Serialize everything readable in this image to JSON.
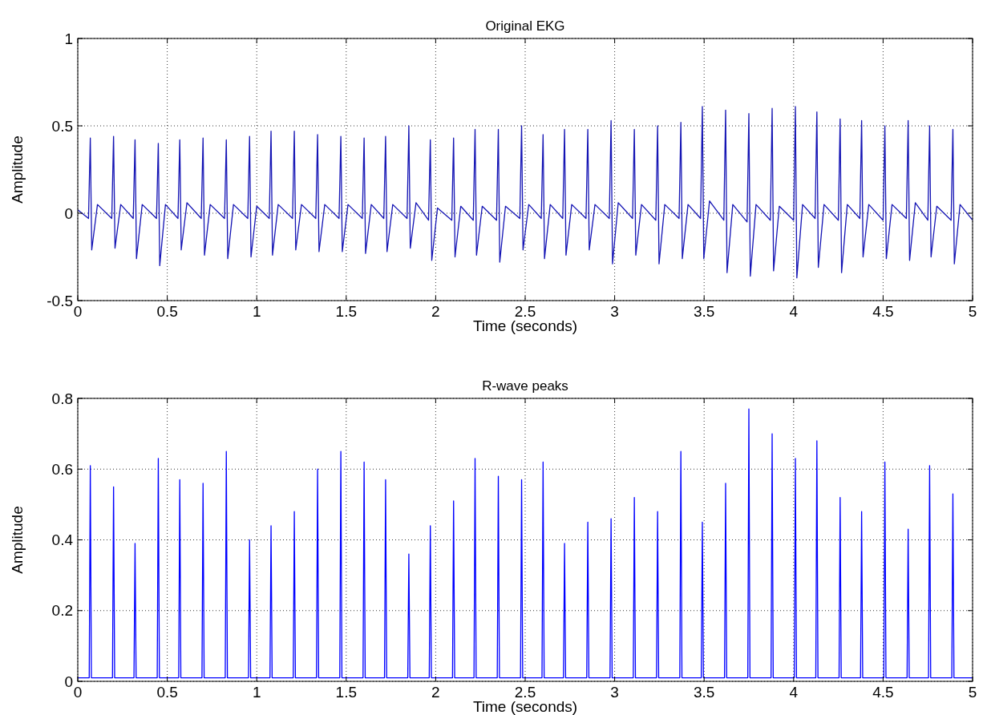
{
  "chart_data": [
    {
      "type": "line",
      "title": "Original EKG",
      "xlabel": "Time (seconds)",
      "ylabel": "Amplitude",
      "xlim": [
        0,
        5
      ],
      "xticks": [
        0,
        0.5,
        1,
        1.5,
        2,
        2.5,
        3,
        3.5,
        4,
        4.5,
        5
      ],
      "ylim": [
        -0.5,
        1
      ],
      "yticks": [
        -0.5,
        0,
        0.5,
        1
      ],
      "grid": true,
      "x": [
        0,
        0.06,
        0.07,
        0.078,
        0.11,
        0.19,
        0.2,
        0.208,
        0.24,
        0.31,
        0.32,
        0.328,
        0.36,
        0.44,
        0.45,
        0.458,
        0.49,
        0.56,
        0.57,
        0.578,
        0.61,
        0.69,
        0.7,
        0.708,
        0.74,
        0.82,
        0.83,
        0.838,
        0.87,
        0.95,
        0.96,
        0.968,
        1.0,
        1.07,
        1.08,
        1.088,
        1.12,
        1.2,
        1.21,
        1.218,
        1.25,
        1.33,
        1.34,
        1.348,
        1.38,
        1.46,
        1.47,
        1.478,
        1.51,
        1.59,
        1.6,
        1.608,
        1.64,
        1.71,
        1.72,
        1.728,
        1.76,
        1.84,
        1.85,
        1.858,
        1.89,
        1.96,
        1.97,
        1.978,
        2.01,
        2.09,
        2.1,
        2.108,
        2.14,
        2.21,
        2.22,
        2.228,
        2.26,
        2.34,
        2.35,
        2.358,
        2.39,
        2.47,
        2.48,
        2.488,
        2.52,
        2.59,
        2.6,
        2.608,
        2.64,
        2.71,
        2.72,
        2.728,
        2.76,
        2.84,
        2.85,
        2.858,
        2.89,
        2.97,
        2.98,
        2.988,
        3.02,
        3.1,
        3.11,
        3.118,
        3.15,
        3.23,
        3.24,
        3.248,
        3.28,
        3.36,
        3.37,
        3.378,
        3.41,
        3.48,
        3.49,
        3.498,
        3.53,
        3.61,
        3.62,
        3.628,
        3.66,
        3.74,
        3.75,
        3.758,
        3.79,
        3.87,
        3.88,
        3.888,
        3.92,
        4.0,
        4.01,
        4.018,
        4.05,
        4.12,
        4.13,
        4.138,
        4.17,
        4.25,
        4.26,
        4.268,
        4.3,
        4.37,
        4.38,
        4.388,
        4.42,
        4.5,
        4.51,
        4.518,
        4.55,
        4.63,
        4.64,
        4.648,
        4.68,
        4.75,
        4.76,
        4.768,
        4.8,
        4.88,
        4.89,
        4.898,
        4.93,
        5
      ],
      "series": [
        {
          "color": "#1414b4",
          "values": [
            0.02,
            -0.03,
            0.43,
            -0.21,
            0.05,
            -0.03,
            0.44,
            -0.2,
            0.05,
            -0.03,
            0.42,
            -0.26,
            0.05,
            -0.03,
            0.4,
            -0.3,
            0.05,
            -0.03,
            0.42,
            -0.21,
            0.06,
            -0.03,
            0.43,
            -0.24,
            0.05,
            -0.03,
            0.42,
            -0.26,
            0.05,
            -0.03,
            0.44,
            -0.25,
            0.04,
            -0.03,
            0.47,
            -0.24,
            0.05,
            -0.03,
            0.47,
            -0.21,
            0.05,
            -0.03,
            0.45,
            -0.22,
            0.05,
            -0.03,
            0.44,
            -0.22,
            0.05,
            -0.03,
            0.43,
            -0.23,
            0.05,
            -0.03,
            0.44,
            -0.22,
            0.05,
            -0.03,
            0.5,
            -0.2,
            0.06,
            -0.04,
            0.42,
            -0.27,
            0.03,
            -0.04,
            0.43,
            -0.25,
            0.04,
            -0.04,
            0.48,
            -0.24,
            0.04,
            -0.04,
            0.48,
            -0.28,
            0.04,
            -0.03,
            0.5,
            -0.21,
            0.05,
            -0.03,
            0.45,
            -0.26,
            0.05,
            -0.03,
            0.48,
            -0.24,
            0.05,
            -0.03,
            0.48,
            -0.21,
            0.05,
            -0.03,
            0.53,
            -0.29,
            0.06,
            -0.03,
            0.48,
            -0.24,
            0.05,
            -0.04,
            0.5,
            -0.29,
            0.05,
            -0.03,
            0.52,
            -0.26,
            0.05,
            -0.03,
            0.61,
            -0.26,
            0.07,
            -0.04,
            0.59,
            -0.34,
            0.05,
            -0.05,
            0.57,
            -0.36,
            0.05,
            -0.04,
            0.6,
            -0.33,
            0.04,
            -0.04,
            0.61,
            -0.37,
            0.05,
            -0.03,
            0.58,
            -0.31,
            0.05,
            -0.04,
            0.54,
            -0.34,
            0.05,
            -0.03,
            0.53,
            -0.25,
            0.05,
            -0.04,
            0.5,
            -0.26,
            0.05,
            -0.03,
            0.53,
            -0.27,
            0.06,
            -0.04,
            0.5,
            -0.25,
            0.04,
            -0.04,
            0.48,
            -0.29,
            0.05,
            -0.04
          ]
        }
      ]
    },
    {
      "type": "line",
      "title": "R-wave peaks",
      "xlabel": "Time (seconds)",
      "ylabel": "Amplitude",
      "xlim": [
        0,
        5
      ],
      "xticks": [
        0,
        0.5,
        1,
        1.5,
        2,
        2.5,
        3,
        3.5,
        4,
        4.5,
        5
      ],
      "ylim": [
        0,
        0.8
      ],
      "yticks": [
        0,
        0.2,
        0.4,
        0.6,
        0.8
      ],
      "grid": true,
      "x": [
        0,
        0.064,
        0.07,
        0.076,
        0.194,
        0.2,
        0.206,
        0.314,
        0.32,
        0.326,
        0.444,
        0.45,
        0.456,
        0.564,
        0.57,
        0.576,
        0.694,
        0.7,
        0.706,
        0.824,
        0.83,
        0.836,
        0.954,
        0.96,
        0.966,
        1.074,
        1.08,
        1.086,
        1.204,
        1.21,
        1.216,
        1.334,
        1.34,
        1.346,
        1.464,
        1.47,
        1.476,
        1.594,
        1.6,
        1.606,
        1.714,
        1.72,
        1.726,
        1.844,
        1.85,
        1.856,
        1.964,
        1.97,
        1.976,
        2.094,
        2.1,
        2.106,
        2.214,
        2.22,
        2.226,
        2.344,
        2.35,
        2.356,
        2.474,
        2.48,
        2.486,
        2.594,
        2.6,
        2.606,
        2.714,
        2.72,
        2.726,
        2.844,
        2.85,
        2.856,
        2.974,
        2.98,
        2.986,
        3.104,
        3.11,
        3.116,
        3.234,
        3.24,
        3.246,
        3.364,
        3.37,
        3.376,
        3.484,
        3.49,
        3.496,
        3.614,
        3.62,
        3.626,
        3.744,
        3.75,
        3.756,
        3.874,
        3.88,
        3.886,
        4.004,
        4.01,
        4.016,
        4.124,
        4.13,
        4.136,
        4.254,
        4.26,
        4.266,
        4.374,
        4.38,
        4.386,
        4.504,
        4.51,
        4.516,
        4.634,
        4.64,
        4.646,
        4.754,
        4.76,
        4.766,
        4.884,
        4.89,
        4.896,
        5
      ],
      "series": [
        {
          "color": "#0000ff",
          "values": [
            0.01,
            0.01,
            0.61,
            0.01,
            0.01,
            0.55,
            0.01,
            0.01,
            0.39,
            0.01,
            0.01,
            0.63,
            0.01,
            0.01,
            0.57,
            0.01,
            0.01,
            0.56,
            0.01,
            0.01,
            0.65,
            0.01,
            0.01,
            0.4,
            0.01,
            0.01,
            0.44,
            0.01,
            0.01,
            0.48,
            0.01,
            0.01,
            0.6,
            0.01,
            0.01,
            0.65,
            0.01,
            0.01,
            0.62,
            0.01,
            0.01,
            0.57,
            0.01,
            0.01,
            0.36,
            0.01,
            0.01,
            0.44,
            0.01,
            0.01,
            0.51,
            0.01,
            0.01,
            0.63,
            0.01,
            0.01,
            0.58,
            0.01,
            0.01,
            0.57,
            0.01,
            0.01,
            0.62,
            0.01,
            0.01,
            0.39,
            0.01,
            0.01,
            0.45,
            0.01,
            0.01,
            0.46,
            0.01,
            0.01,
            0.52,
            0.01,
            0.01,
            0.48,
            0.01,
            0.01,
            0.65,
            0.01,
            0.01,
            0.45,
            0.01,
            0.01,
            0.56,
            0.01,
            0.01,
            0.77,
            0.01,
            0.01,
            0.7,
            0.01,
            0.01,
            0.63,
            0.01,
            0.01,
            0.68,
            0.01,
            0.01,
            0.52,
            0.01,
            0.01,
            0.48,
            0.01,
            0.01,
            0.62,
            0.01,
            0.01,
            0.43,
            0.01,
            0.01,
            0.61,
            0.01,
            0.01,
            0.53,
            0.01,
            0.01
          ]
        }
      ]
    }
  ]
}
